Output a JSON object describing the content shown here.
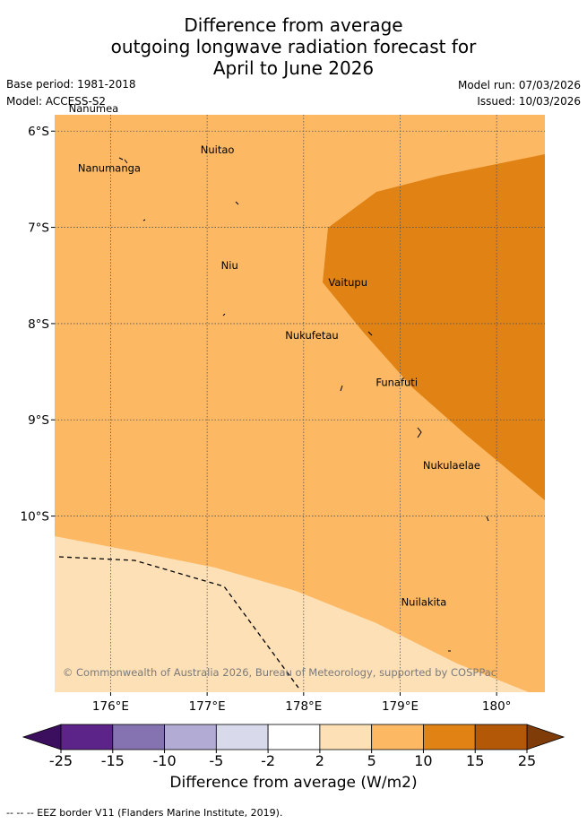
{
  "title": {
    "line1": "Difference from average",
    "line2": "outgoing longwave radiation forecast for",
    "line3": "April to June 2026"
  },
  "meta": {
    "base_period": "Base period: 1981-2018",
    "model": "Model: ACCESS-S2",
    "model_run": "Model run: 07/03/2026",
    "issued": "Issued: 10/03/2026"
  },
  "map": {
    "lon_range": [
      175.42,
      180.5
    ],
    "lat_range": [
      -11.83,
      -5.83
    ],
    "lon_ticks": [
      "176°E",
      "177°E",
      "178°E",
      "179°E",
      "180°"
    ],
    "lat_ticks": [
      "6°S",
      "7°S",
      "8°S",
      "9°S",
      "10°S"
    ],
    "places": [
      {
        "name": "Nanumea",
        "lon": 176.1,
        "lat": -5.67
      },
      {
        "name": "Nuitao",
        "lon": 177.3,
        "lat": -6.1
      },
      {
        "name": "Nanumanga",
        "lon": 176.33,
        "lat": -6.29
      },
      {
        "name": "Niu",
        "lon": 177.34,
        "lat": -7.3
      },
      {
        "name": "Vaitupu",
        "lon": 178.68,
        "lat": -7.48
      },
      {
        "name": "Nukufetau",
        "lon": 178.38,
        "lat": -8.03
      },
      {
        "name": "Funafuti",
        "lon": 179.2,
        "lat": -8.52
      },
      {
        "name": "Nukulaelae",
        "lon": 179.85,
        "lat": -9.38
      },
      {
        "name": "Nuilakita",
        "lon": 179.5,
        "lat": -10.8
      }
    ],
    "copyright": "© Commonwealth of Australia 2026, Bureau of Meteorology, supported by COSPPac"
  },
  "colorbar": {
    "ticks": [
      "-25",
      "-15",
      "-10",
      "-5",
      "-2",
      "2",
      "5",
      "10",
      "15",
      "25"
    ],
    "colors": [
      "#5c2488",
      "#8473b0",
      "#b2abd3",
      "#d8daeb",
      "#ffffff",
      "#fee0b6",
      "#fdb863",
      "#e08214",
      "#b35806"
    ],
    "under_color": "#3b0f5e",
    "over_color": "#7f3b08",
    "label": "Difference from average (W/m2)"
  },
  "footnote": "--  --  -- EEZ border V11 (Flanders Marine Institute, 2019)."
}
